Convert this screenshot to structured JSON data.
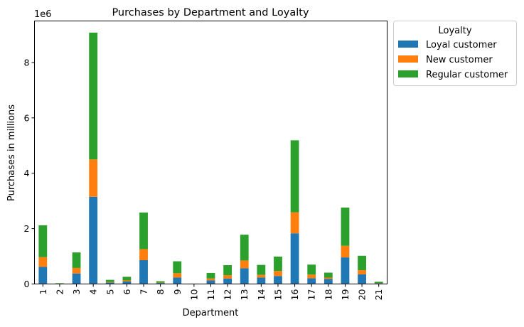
{
  "chart_data": {
    "type": "bar",
    "stacked": true,
    "title": "Purchases by Department and Loyalty",
    "xlabel": "Department",
    "ylabel": "Purchases in millions",
    "scale_label": "1e6",
    "categories": [
      "1",
      "2",
      "3",
      "4",
      "5",
      "6",
      "7",
      "8",
      "9",
      "10",
      "11",
      "12",
      "13",
      "14",
      "15",
      "16",
      "17",
      "18",
      "19",
      "20",
      "21"
    ],
    "ylim": [
      0,
      9500000
    ],
    "yticks": [
      0,
      2000000,
      4000000,
      6000000,
      8000000
    ],
    "ytick_labels": [
      "0",
      "2",
      "4",
      "6",
      "8"
    ],
    "grid": false,
    "legend": {
      "title": "Loyalty",
      "placement": "outside-top-right"
    },
    "series": [
      {
        "name": "Loyal customer",
        "color": "#1f77b4",
        "values": [
          620000,
          12000,
          380000,
          3150000,
          50000,
          90000,
          860000,
          35000,
          230000,
          5000,
          130000,
          200000,
          570000,
          230000,
          290000,
          1830000,
          210000,
          180000,
          960000,
          350000,
          25000
        ]
      },
      {
        "name": "New customer",
        "color": "#ff7f0e",
        "values": [
          350000,
          5000,
          200000,
          1350000,
          20000,
          40000,
          400000,
          15000,
          160000,
          2000,
          70000,
          120000,
          280000,
          100000,
          180000,
          760000,
          130000,
          50000,
          420000,
          150000,
          10000
        ]
      },
      {
        "name": "Regular customer",
        "color": "#2ca02c",
        "values": [
          1150000,
          13000,
          560000,
          4580000,
          80000,
          130000,
          1320000,
          50000,
          430000,
          8000,
          200000,
          360000,
          930000,
          360000,
          520000,
          2600000,
          360000,
          180000,
          1380000,
          520000,
          45000
        ]
      }
    ]
  }
}
